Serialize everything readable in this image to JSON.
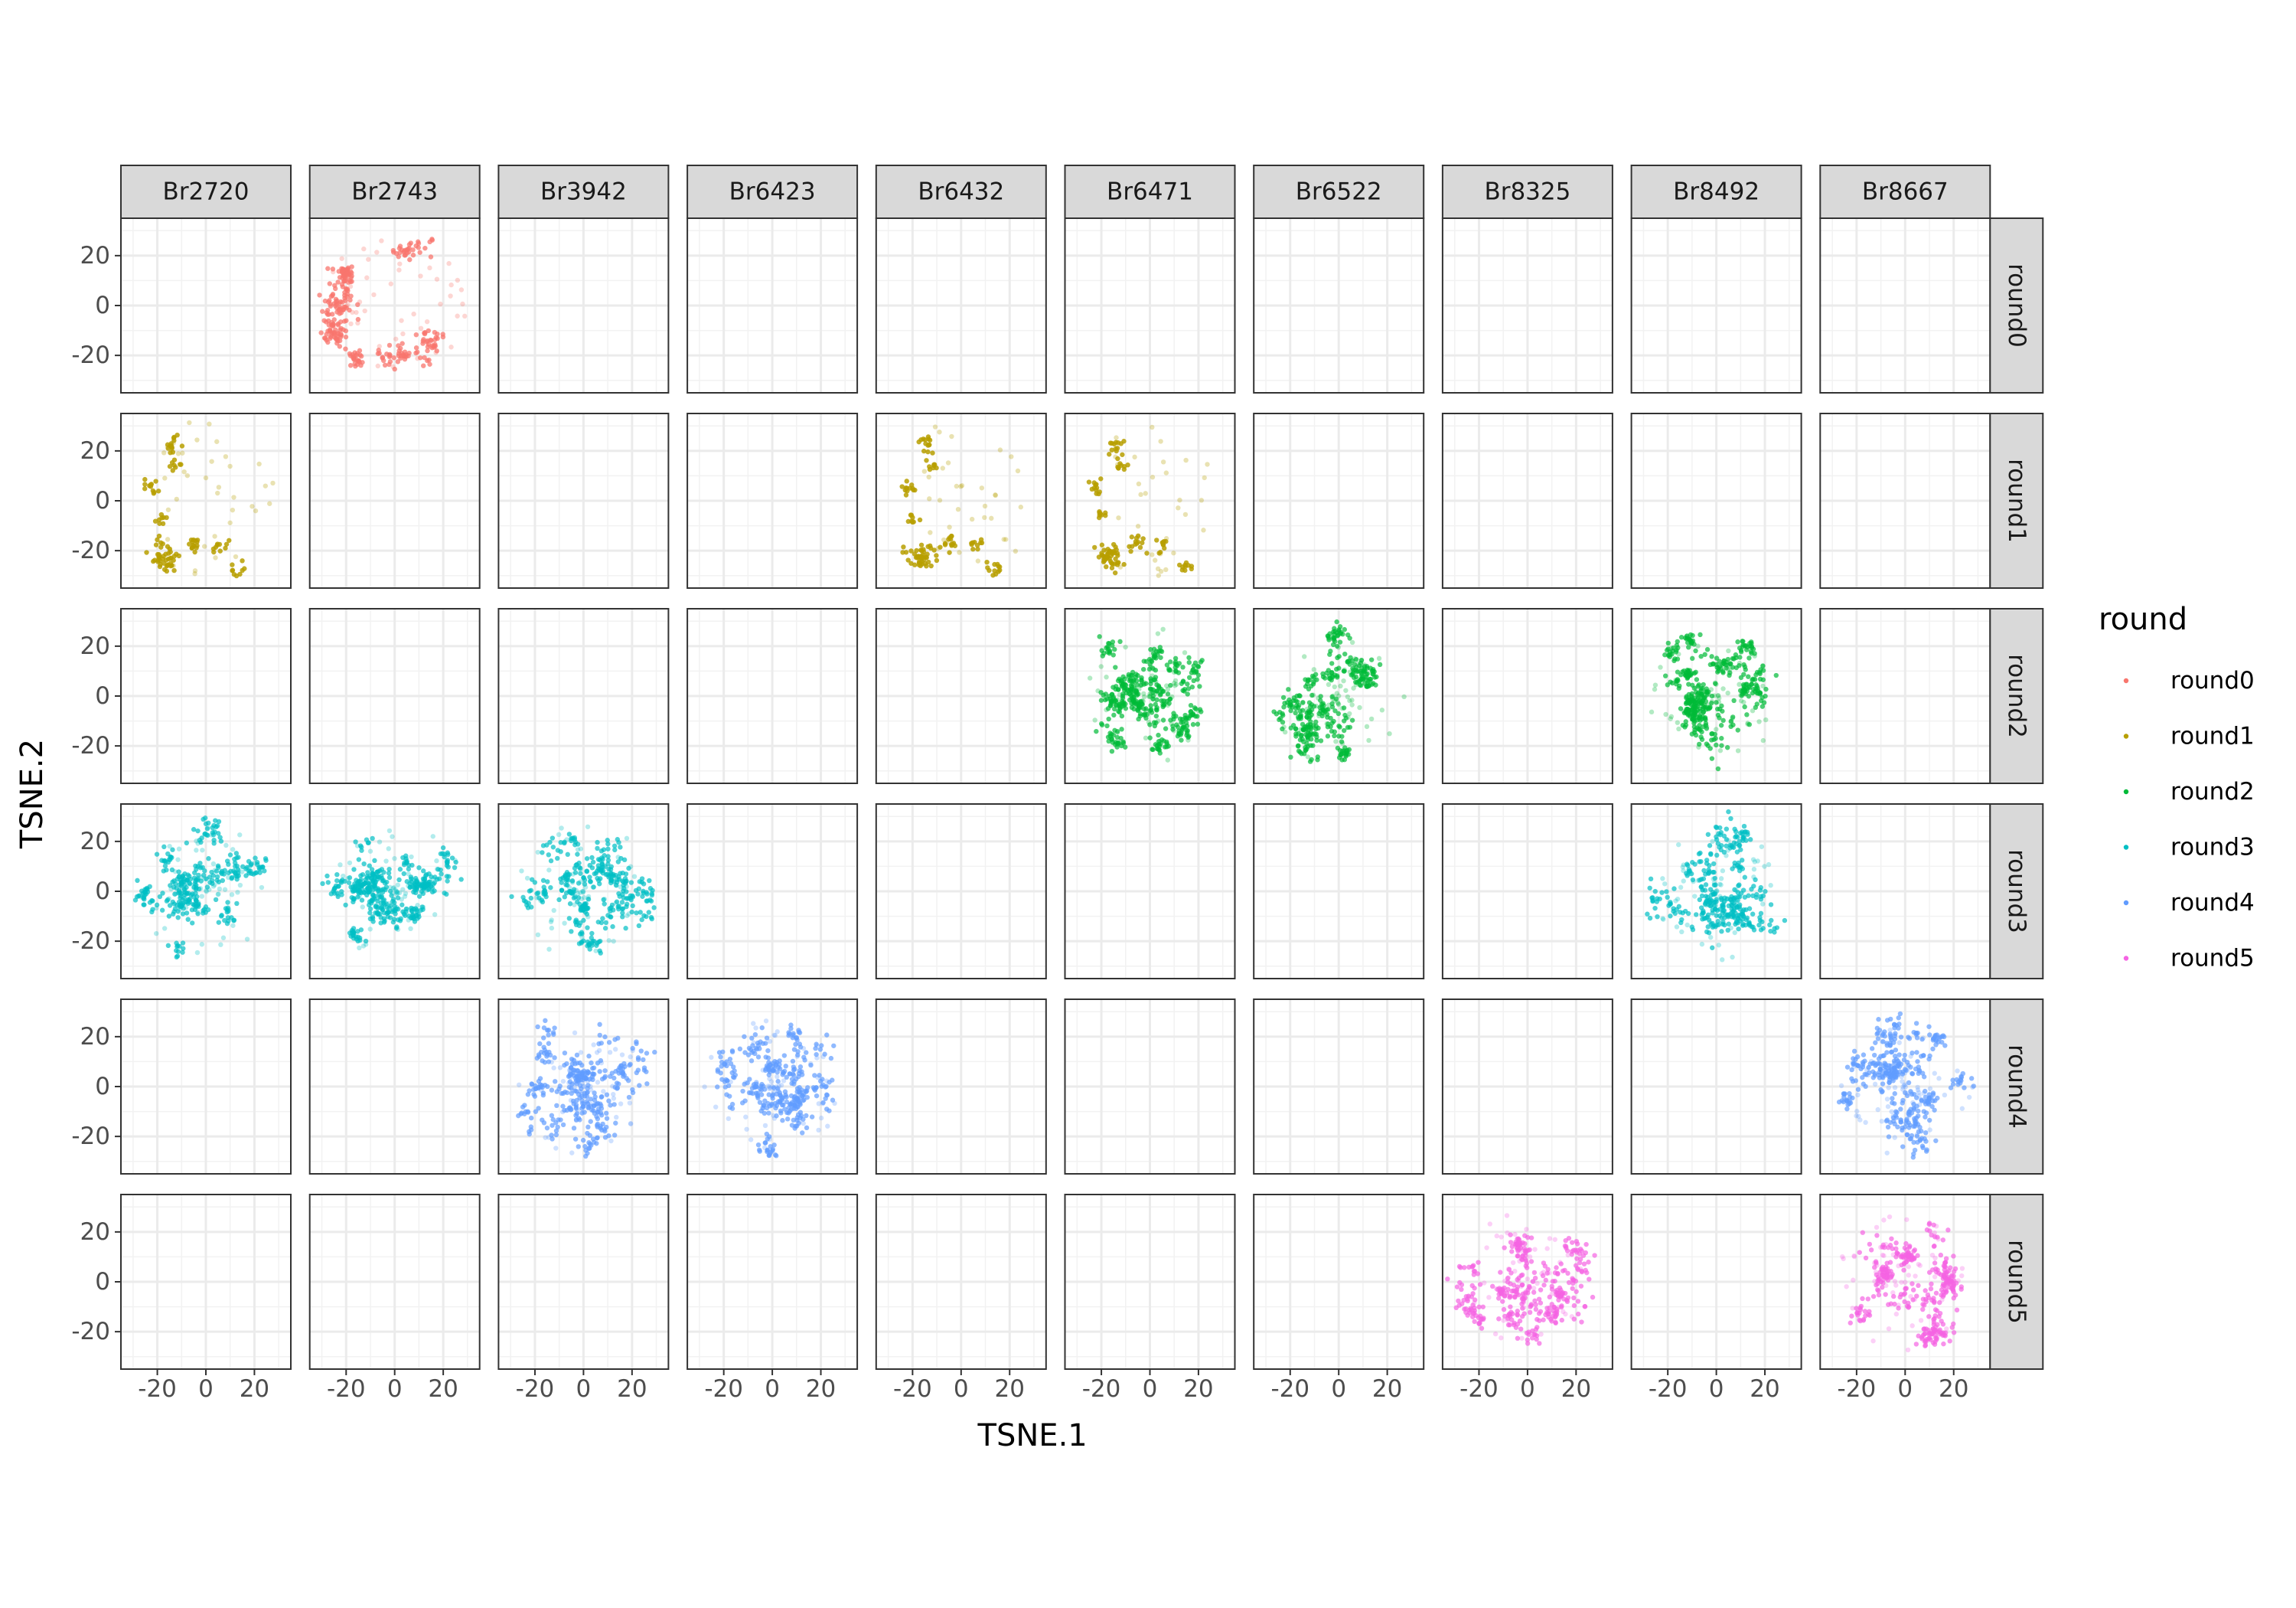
{
  "chart_data": {
    "type": "scatter",
    "facet": "grid",
    "xlabel": "TSNE.1",
    "ylabel": "TSNE.2",
    "xlim": [
      -35,
      35
    ],
    "ylim": [
      -35,
      35
    ],
    "x_ticks": [
      -20,
      0,
      20
    ],
    "y_ticks": [
      -20,
      0,
      20
    ],
    "x_tick_labels": [
      "-20",
      "0",
      "20"
    ],
    "y_tick_labels": [
      "-20",
      "0",
      "20"
    ],
    "grid": true,
    "columns": [
      "Br2720",
      "Br2743",
      "Br3942",
      "Br6423",
      "Br6432",
      "Br6471",
      "Br6522",
      "Br8325",
      "Br8492",
      "Br8667"
    ],
    "rows": [
      "round0",
      "round1",
      "round2",
      "round3",
      "round4",
      "round5"
    ],
    "legend": {
      "title": "round",
      "position": "right",
      "items": [
        {
          "label": "round0",
          "color": "#F8766D"
        },
        {
          "label": "round1",
          "color": "#B79F00"
        },
        {
          "label": "round2",
          "color": "#00BA38"
        },
        {
          "label": "round3",
          "color": "#00BFC4"
        },
        {
          "label": "round4",
          "color": "#619CFF"
        },
        {
          "label": "round5",
          "color": "#F564E3"
        }
      ]
    },
    "panels": [
      {
        "row": "round0",
        "col": "Br2743",
        "shape": "ring",
        "seed": 11
      },
      {
        "row": "round1",
        "col": "Br2720",
        "shape": "arc",
        "seed": 21
      },
      {
        "row": "round1",
        "col": "Br6432",
        "shape": "arc",
        "seed": 22
      },
      {
        "row": "round1",
        "col": "Br6471",
        "shape": "arc",
        "seed": 23
      },
      {
        "row": "round2",
        "col": "Br6471",
        "shape": "blob",
        "seed": 31
      },
      {
        "row": "round2",
        "col": "Br6522",
        "shape": "blob",
        "seed": 32
      },
      {
        "row": "round2",
        "col": "Br8492",
        "shape": "blob",
        "seed": 33
      },
      {
        "row": "round3",
        "col": "Br2720",
        "shape": "blob",
        "seed": 41
      },
      {
        "row": "round3",
        "col": "Br2743",
        "shape": "blob",
        "seed": 42
      },
      {
        "row": "round3",
        "col": "Br3942",
        "shape": "blob",
        "seed": 43
      },
      {
        "row": "round3",
        "col": "Br8492",
        "shape": "blob",
        "seed": 44
      },
      {
        "row": "round4",
        "col": "Br3942",
        "shape": "blob",
        "seed": 51
      },
      {
        "row": "round4",
        "col": "Br6423",
        "shape": "blob",
        "seed": 52
      },
      {
        "row": "round4",
        "col": "Br8667",
        "shape": "blob",
        "seed": 53
      },
      {
        "row": "round5",
        "col": "Br8325",
        "shape": "blob",
        "seed": 61
      },
      {
        "row": "round5",
        "col": "Br8667",
        "shape": "blob",
        "seed": 62
      }
    ]
  }
}
